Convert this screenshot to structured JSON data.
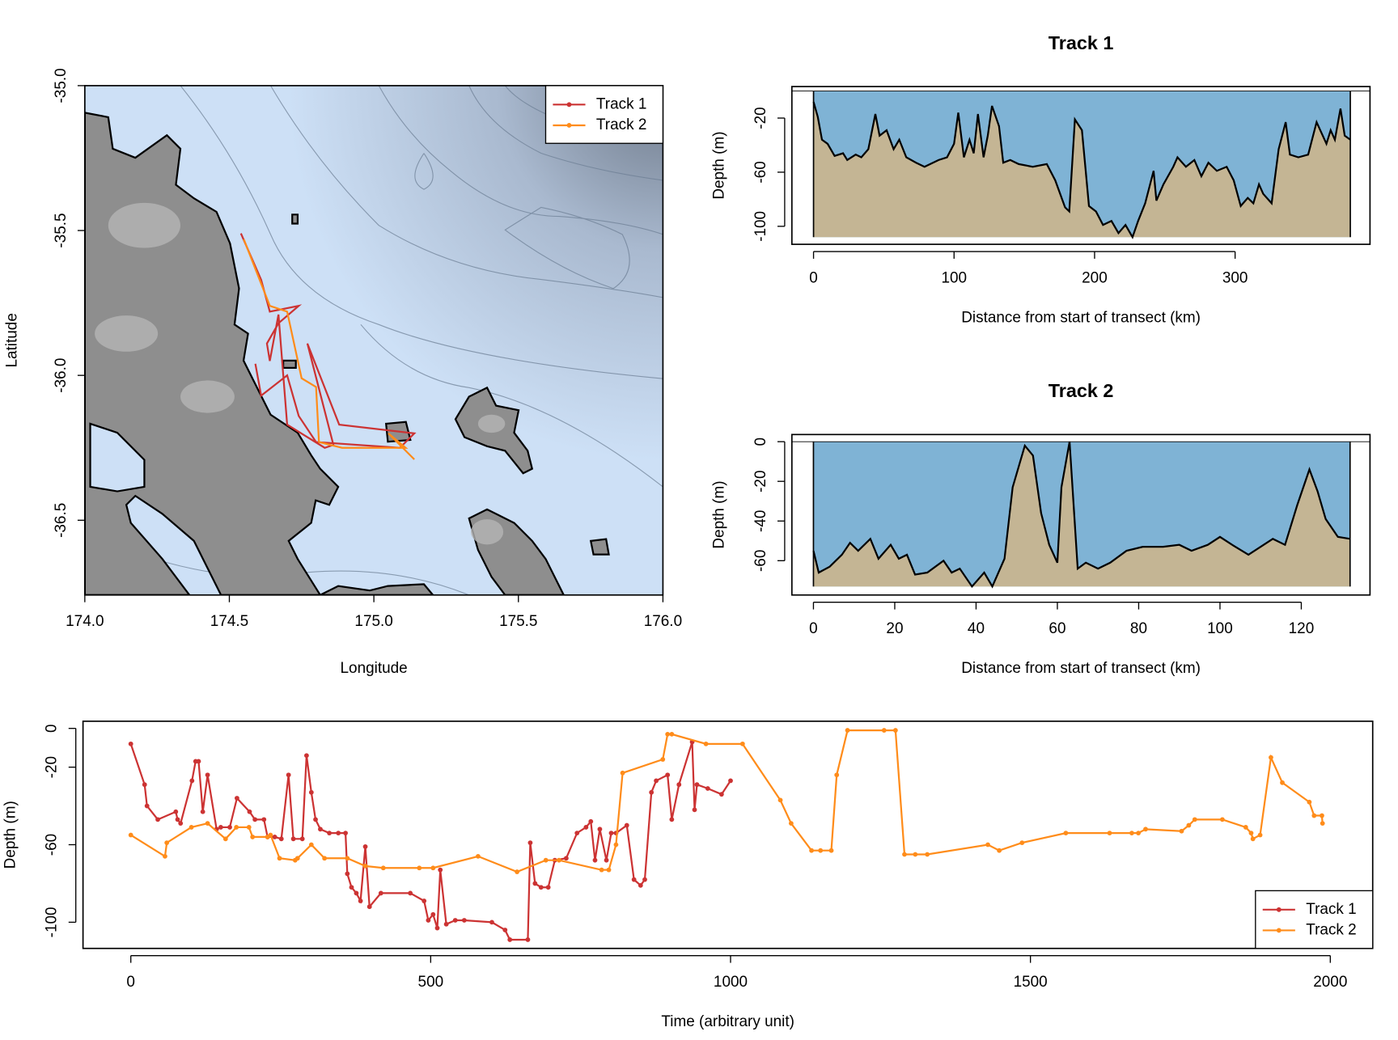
{
  "chart_data": [
    {
      "type": "map",
      "xlabel": "Longitude",
      "ylabel": "Latitude",
      "xlim": [
        174,
        176
      ],
      "ylim": [
        -36.758,
        -35
      ],
      "xticks": [
        {
          "value": 174,
          "label": "174.0"
        },
        {
          "value": 174.5,
          "label": "174.5"
        },
        {
          "value": 175,
          "label": "175.0"
        },
        {
          "value": 175.5,
          "label": "175.5"
        },
        {
          "value": 176,
          "label": "176.0"
        }
      ],
      "yticks": [
        {
          "value": -35,
          "label": "-35.0"
        },
        {
          "value": -35.5,
          "label": "-35.5"
        },
        {
          "value": -36,
          "label": "-36.0"
        },
        {
          "value": -36.5,
          "label": "-36.5"
        }
      ],
      "legend": "topright",
      "series": [
        {
          "name": "Track 1",
          "color": "#cc3333",
          "x": [
            174.54,
            174.61,
            174.64,
            174.74,
            174.67,
            174.63,
            174.64,
            174.67,
            174.7,
            174.83,
            174.86,
            174.77,
            174.88,
            175.14,
            175.09,
            174.8,
            174.74,
            174.7,
            174.61,
            174.59
          ],
          "values": [
            -35.51,
            -35.67,
            -35.78,
            -35.76,
            -35.82,
            -35.89,
            -35.95,
            -35.79,
            -36.17,
            -36.25,
            -36.24,
            -35.89,
            -36.17,
            -36.2,
            -36.25,
            -36.23,
            -36.14,
            -36.0,
            -36.07,
            -35.96
          ]
        },
        {
          "name": "Track 2",
          "color": "#ff8c1a",
          "x": [
            174.55,
            174.64,
            174.7,
            174.75,
            174.8,
            174.81,
            174.89,
            175.11,
            175.05,
            175.14
          ],
          "values": [
            -35.53,
            -35.76,
            -35.78,
            -36.01,
            -36.04,
            -36.23,
            -36.25,
            -36.25,
            -36.2,
            -36.29
          ]
        }
      ]
    },
    {
      "type": "area",
      "title": "Track 1",
      "xlabel": "Distance from start of transect (km)",
      "ylabel": "Depth (m)",
      "xlim": [
        -15.4,
        396
      ],
      "ylim": [
        -113.3,
        3.3
      ],
      "xticks": [
        0,
        100,
        200,
        300
      ],
      "yticks": [
        -20,
        -60,
        -100
      ],
      "water_color": "#7fb3d5",
      "seabed_color": "#c4b594",
      "x": [
        0,
        3,
        6,
        10,
        15,
        21,
        24,
        30,
        34,
        39,
        44,
        47,
        52,
        57,
        61,
        66,
        73,
        79,
        89,
        95,
        100,
        103,
        107,
        111,
        114,
        117,
        121,
        124,
        127,
        132,
        135,
        140,
        146,
        156,
        166,
        172,
        179,
        182,
        186,
        191,
        196,
        201,
        206,
        212,
        217,
        222,
        227,
        231,
        236,
        242,
        244,
        249,
        256,
        259,
        265,
        271,
        276,
        281,
        287,
        294,
        299,
        304,
        309,
        313,
        317,
        320,
        326,
        331,
        336,
        339,
        345,
        352,
        358,
        365,
        368,
        371,
        375,
        378,
        382
      ],
      "values": [
        -8,
        -19,
        -36,
        -39,
        -48,
        -46,
        -51,
        -47,
        -49,
        -43,
        -17,
        -33,
        -29,
        -43,
        -36,
        -49,
        -53,
        -56,
        -51,
        -49,
        -39,
        -16,
        -49,
        -36,
        -46,
        -17,
        -49,
        -33,
        -11,
        -26,
        -53,
        -51,
        -54,
        -56,
        -54,
        -66,
        -86,
        -89,
        -21,
        -29,
        -85,
        -89,
        -99,
        -96,
        -105,
        -99,
        -108,
        -96,
        -83,
        -59,
        -81,
        -69,
        -56,
        -49,
        -56,
        -51,
        -63,
        -53,
        -59,
        -56,
        -66,
        -85,
        -79,
        -83,
        -69,
        -76,
        -83,
        -43,
        -23,
        -47,
        -49,
        -47,
        -23,
        -39,
        -29,
        -36,
        -13,
        -33,
        -36
      ]
    },
    {
      "type": "area",
      "title": "Track 2",
      "xlabel": "Distance from start of transect (km)",
      "ylabel": "Depth (m)",
      "xlim": [
        -5.3,
        136.9
      ],
      "ylim": [
        -77.3,
        3.6
      ],
      "xticks": [
        0,
        20,
        40,
        60,
        80,
        100,
        120
      ],
      "yticks": [
        0,
        -20,
        -40,
        -60
      ],
      "water_color": "#7fb3d5",
      "seabed_color": "#c4b594",
      "x": [
        0,
        1.3,
        4,
        7,
        9,
        11,
        14,
        16,
        19,
        21,
        23,
        25,
        28,
        32,
        34,
        36,
        39,
        42,
        44,
        47,
        49,
        52,
        54,
        56,
        58,
        60,
        61,
        63,
        65,
        67,
        70,
        73,
        77,
        81,
        86,
        90,
        93,
        97,
        100,
        103,
        107,
        113,
        116,
        119,
        122,
        124,
        126,
        129,
        132
      ],
      "values": [
        -55,
        -66,
        -63,
        -57,
        -51,
        -55,
        -49,
        -59,
        -52,
        -59,
        -57,
        -67,
        -66,
        -60,
        -66,
        -64,
        -73,
        -66,
        -73,
        -59,
        -23,
        -2,
        -7,
        -36,
        -52,
        -61,
        -23,
        0,
        -64,
        -61,
        -64,
        -61,
        -55,
        -53,
        -53,
        -52,
        -55,
        -52,
        -48,
        -52,
        -57,
        -49,
        -52,
        -32,
        -14,
        -25,
        -39,
        -48,
        -49
      ]
    },
    {
      "type": "line",
      "xlabel": "Time (arbitrary unit)",
      "ylabel": "Depth (m)",
      "xlim": [
        -79.7,
        2070.7
      ],
      "ylim": [
        -113.5,
        3.7
      ],
      "xticks": [
        0,
        500,
        1000,
        1500,
        2000
      ],
      "yticks": [
        0,
        -20,
        -60,
        -100
      ],
      "legend": "bottomright",
      "series": [
        {
          "name": "Track 1",
          "color": "#cc3333",
          "x": [
            0,
            23,
            27,
            45,
            75,
            78,
            83,
            102,
            108,
            113,
            120,
            128,
            143,
            150,
            165,
            177,
            198,
            207,
            222,
            228,
            240,
            251,
            263,
            271,
            286,
            293,
            301,
            308,
            316,
            331,
            346,
            358,
            361,
            368,
            376,
            383,
            391,
            398,
            417,
            466,
            489,
            496,
            504,
            511,
            516,
            526,
            541,
            556,
            602,
            624,
            632,
            662,
            666,
            674,
            684,
            696,
            707,
            726,
            744,
            759,
            767,
            774,
            782,
            793,
            801,
            809,
            827,
            839,
            850,
            857,
            868,
            876,
            895,
            902,
            914,
            936,
            940,
            944,
            962,
            985,
            1000
          ],
          "values": [
            -8,
            -29,
            -40,
            -47,
            -43,
            -47,
            -49,
            -27,
            -17,
            -17,
            -43,
            -24,
            -52,
            -51,
            -51,
            -36,
            -43,
            -47,
            -47,
            -56,
            -56,
            -57,
            -24,
            -57,
            -57,
            -14,
            -33,
            -47,
            -52,
            -54,
            -54,
            -54,
            -75,
            -82,
            -85,
            -89,
            -61,
            -92,
            -85,
            -85,
            -89,
            -99,
            -96,
            -103,
            -73,
            -101,
            -99,
            -99,
            -100,
            -104,
            -109,
            -109,
            -59,
            -80,
            -82,
            -82,
            -68,
            -67,
            -54,
            -51,
            -48,
            -68,
            -52,
            -68,
            -54,
            -54,
            -50,
            -78,
            -81,
            -78,
            -33,
            -27,
            -24,
            -47,
            -29,
            -7,
            -42,
            -29,
            -31,
            -34,
            -27
          ]
        },
        {
          "name": "Track 2",
          "color": "#ff8c1a",
          "x": [
            0,
            57,
            60,
            101,
            128,
            158,
            176,
            197,
            203,
            228,
            233,
            248,
            274,
            278,
            301,
            323,
            361,
            391,
            421,
            481,
            504,
            579,
            644,
            692,
            714,
            785,
            797,
            809,
            820,
            887,
            895,
            902,
            959,
            1020,
            1083,
            1101,
            1135,
            1150,
            1168,
            1177,
            1195,
            1256,
            1275,
            1290,
            1308,
            1328,
            1429,
            1448,
            1486,
            1559,
            1632,
            1669,
            1680,
            1692,
            1752,
            1764,
            1774,
            1820,
            1859,
            1868,
            1871,
            1883,
            1901,
            1920,
            1965,
            1973,
            1986,
            1987
          ],
          "values": [
            -55,
            -66,
            -59,
            -51,
            -49,
            -57,
            -51,
            -51,
            -56,
            -56,
            -55,
            -67,
            -68,
            -67,
            -60,
            -67,
            -67,
            -71,
            -72,
            -72,
            -72,
            -66,
            -74,
            -68,
            -68,
            -73,
            -73,
            -60,
            -23,
            -16,
            -3,
            -3,
            -8,
            -8,
            -37,
            -49,
            -63,
            -63,
            -63,
            -24,
            -1,
            -1,
            -1,
            -65,
            -65,
            -65,
            -60,
            -63,
            -59,
            -54,
            -54,
            -54,
            -54,
            -52,
            -53,
            -50,
            -47,
            -47,
            -51,
            -54,
            -57,
            -55,
            -15,
            -28,
            -38,
            -45,
            -45,
            -49
          ]
        }
      ]
    }
  ]
}
